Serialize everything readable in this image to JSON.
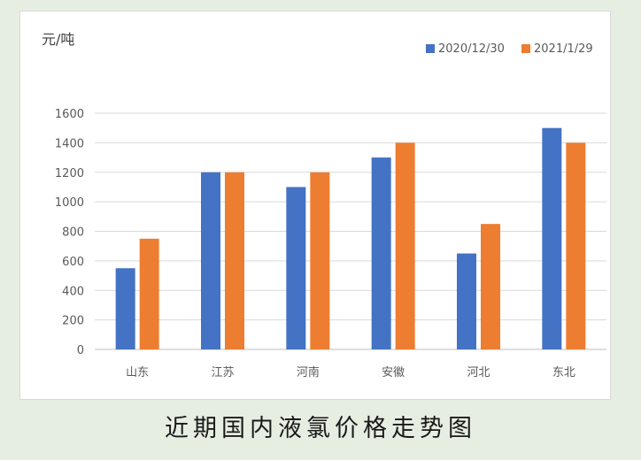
{
  "caption": "近期国内液氯价格走势图",
  "chart_data": {
    "type": "bar",
    "ylabel": "元/吨",
    "categories": [
      "山东",
      "江苏",
      "河南",
      "安徽",
      "河北",
      "东北"
    ],
    "series": [
      {
        "name": "2020/12/30",
        "color": "#4472c4",
        "values": [
          550,
          1200,
          1100,
          1300,
          650,
          1500
        ]
      },
      {
        "name": "2021/1/29",
        "color": "#ed7d31",
        "values": [
          750,
          1200,
          1200,
          1400,
          850,
          1400
        ]
      }
    ],
    "ylim": [
      0,
      1600
    ],
    "yticks": [
      0,
      200,
      400,
      600,
      800,
      1000,
      1200,
      1400,
      1600
    ],
    "grid": true,
    "legend_position": "top-right"
  }
}
